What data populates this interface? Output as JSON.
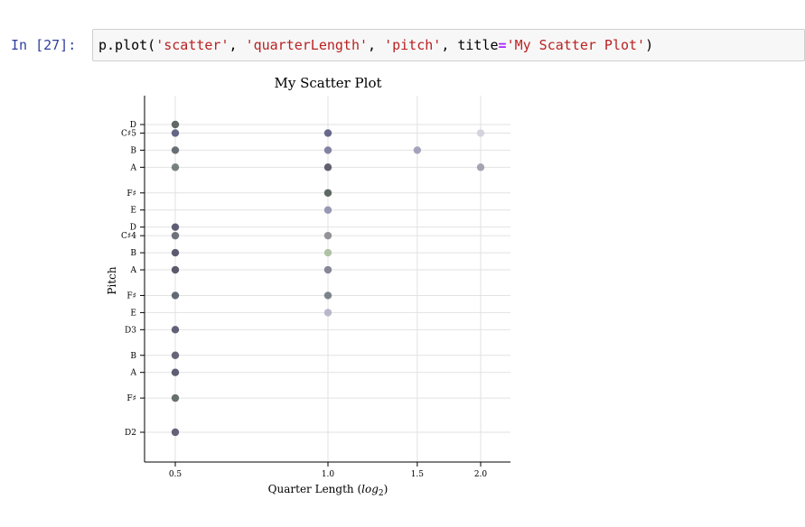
{
  "cell": {
    "prompt": "In [27]:",
    "code_parts": {
      "p1": "p.plot(",
      "s1": "'scatter'",
      "c1": ", ",
      "s2": "'quarterLength'",
      "c2": ", ",
      "s3": "'pitch'",
      "c3": ", title",
      "eq": "=",
      "s4": "'My Scatter Plot'",
      "end": ")"
    }
  },
  "chart_data": {
    "type": "scatter",
    "title": "My Scatter Plot",
    "xlabel_main": "Quarter Length (",
    "xlabel_italic": "log",
    "xlabel_sub": "2",
    "xlabel_close": ")",
    "ylabel": "Pitch",
    "x_scale": "log2",
    "x_ticks": [
      0.5,
      1.0,
      1.5,
      2.0
    ],
    "x_tick_labels": [
      "0.5",
      "1.0",
      "1.5",
      "2.0"
    ],
    "grid": true,
    "y_ticks": [
      {
        "label": "D2",
        "midi": 38
      },
      {
        "label": "F♯",
        "midi": 42
      },
      {
        "label": "A",
        "midi": 45
      },
      {
        "label": "B",
        "midi": 47
      },
      {
        "label": "D3",
        "midi": 50
      },
      {
        "label": "E",
        "midi": 52
      },
      {
        "label": "F♯",
        "midi": 54
      },
      {
        "label": "A",
        "midi": 57
      },
      {
        "label": "B",
        "midi": 59
      },
      {
        "label": "C♯4",
        "midi": 61
      },
      {
        "label": "D",
        "midi": 62
      },
      {
        "label": "E",
        "midi": 64
      },
      {
        "label": "F♯",
        "midi": 66
      },
      {
        "label": "A",
        "midi": 69
      },
      {
        "label": "B",
        "midi": 71
      },
      {
        "label": "C♯5",
        "midi": 73
      },
      {
        "label": "D",
        "midi": 74
      }
    ],
    "points": [
      {
        "x": 0.5,
        "y": 38,
        "color": "#52526a"
      },
      {
        "x": 0.5,
        "y": 42,
        "color": "#586060"
      },
      {
        "x": 0.5,
        "y": 45,
        "color": "#4d4d66"
      },
      {
        "x": 0.5,
        "y": 47,
        "color": "#575768"
      },
      {
        "x": 0.5,
        "y": 50,
        "color": "#505068"
      },
      {
        "x": 0.5,
        "y": 54,
        "color": "#525a68"
      },
      {
        "x": 0.5,
        "y": 57,
        "color": "#4a4a5e"
      },
      {
        "x": 0.5,
        "y": 59,
        "color": "#4a4a62"
      },
      {
        "x": 0.5,
        "y": 61,
        "color": "#5e6470"
      },
      {
        "x": 0.5,
        "y": 62,
        "color": "#4c4c66"
      },
      {
        "x": 0.5,
        "y": 69,
        "color": "#6a7274"
      },
      {
        "x": 0.5,
        "y": 71,
        "color": "#5a6066"
      },
      {
        "x": 0.5,
        "y": 73,
        "color": "#55557a"
      },
      {
        "x": 0.5,
        "y": 74,
        "color": "#4f5a55"
      },
      {
        "x": 1.0,
        "y": 52,
        "color": "#b0b0c8"
      },
      {
        "x": 1.0,
        "y": 54,
        "color": "#6e7880"
      },
      {
        "x": 1.0,
        "y": 57,
        "color": "#7a7a8c"
      },
      {
        "x": 1.0,
        "y": 59,
        "color": "#a8bc9c"
      },
      {
        "x": 1.0,
        "y": 61,
        "color": "#88888e"
      },
      {
        "x": 1.0,
        "y": 64,
        "color": "#8e8eae"
      },
      {
        "x": 1.0,
        "y": 66,
        "color": "#4d5a52"
      },
      {
        "x": 1.0,
        "y": 69,
        "color": "#505060"
      },
      {
        "x": 1.0,
        "y": 71,
        "color": "#76769a"
      },
      {
        "x": 1.0,
        "y": 73,
        "color": "#5a5a80"
      },
      {
        "x": 1.5,
        "y": 71,
        "color": "#9a9ab6"
      },
      {
        "x": 2.0,
        "y": 69,
        "color": "#9c9caa"
      },
      {
        "x": 2.0,
        "y": 73,
        "color": "#d0d0dc"
      }
    ]
  }
}
